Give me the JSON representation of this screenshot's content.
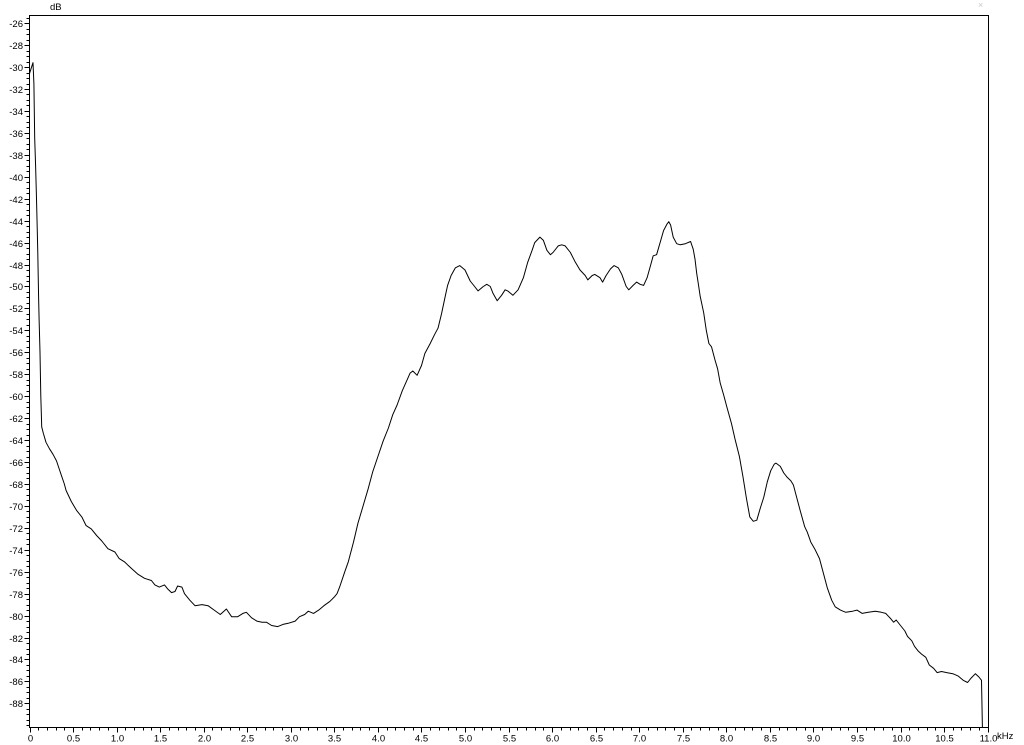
{
  "window": {
    "corner_mark": "×"
  },
  "axes": {
    "y_unit_label": "dB",
    "x_unit_label": "kHz",
    "y_tick_labels": [
      "-26",
      "-28",
      "-30",
      "-32",
      "-34",
      "-36",
      "-38",
      "-40",
      "-42",
      "-44",
      "-46",
      "-48",
      "-50",
      "-52",
      "-54",
      "-56",
      "-58",
      "-60",
      "-62",
      "-64",
      "-66",
      "-68",
      "-70",
      "-72",
      "-74",
      "-76",
      "-78",
      "-80",
      "-82",
      "-84",
      "-86",
      "-88"
    ],
    "x_tick_labels": [
      "0",
      "0.5",
      "1.0",
      "1.5",
      "2.0",
      "2.5",
      "3.0",
      "3.5",
      "4.0",
      "4.5",
      "5.0",
      "5.5",
      "6.0",
      "6.5",
      "7.0",
      "7.5",
      "8.0",
      "8.5",
      "9.0",
      "9.5",
      "10.0",
      "10.5",
      "11.0"
    ]
  },
  "chart_data": {
    "type": "line",
    "title": "",
    "xlabel": "kHz",
    "ylabel": "dB",
    "xlim": [
      0,
      11.01
    ],
    "ylim": [
      -90.2,
      -25.3
    ],
    "x_major_tick_step": 0.5,
    "x_minor_tick_step": 0.1,
    "y_major_tick_step": 2,
    "y_minor_tick_step": 0.5,
    "grid": false,
    "legend": null,
    "line_color": "#000000",
    "background_color": "#ffffff",
    "frame_color": "#000000",
    "series": [
      {
        "name": "spectrum-trace",
        "points": [
          [
            0.0,
            -30.6
          ],
          [
            0.02,
            -30.1
          ],
          [
            0.04,
            -29.6
          ],
          [
            0.05,
            -31.5
          ],
          [
            0.055,
            -34.0
          ],
          [
            0.06,
            -36.5
          ],
          [
            0.07,
            -39.0
          ],
          [
            0.08,
            -42.0
          ],
          [
            0.09,
            -45.0
          ],
          [
            0.095,
            -47.0
          ],
          [
            0.1,
            -49.0
          ],
          [
            0.105,
            -51.0
          ],
          [
            0.11,
            -53.0
          ],
          [
            0.12,
            -56.0
          ],
          [
            0.125,
            -58.0
          ],
          [
            0.13,
            -60.0
          ],
          [
            0.135,
            -61.5
          ],
          [
            0.14,
            -62.8
          ],
          [
            0.16,
            -63.4
          ],
          [
            0.19,
            -64.2
          ],
          [
            0.23,
            -64.8
          ],
          [
            0.27,
            -65.3
          ],
          [
            0.31,
            -65.9
          ],
          [
            0.34,
            -66.6
          ],
          [
            0.37,
            -67.3
          ],
          [
            0.4,
            -68.0
          ],
          [
            0.42,
            -68.6
          ],
          [
            0.45,
            -69.1
          ],
          [
            0.48,
            -69.6
          ],
          [
            0.51,
            -70.0
          ],
          [
            0.54,
            -70.4
          ],
          [
            0.57,
            -70.7
          ],
          [
            0.6,
            -71.0
          ],
          [
            0.65,
            -71.8
          ],
          [
            0.71,
            -72.1
          ],
          [
            0.77,
            -72.7
          ],
          [
            0.83,
            -73.2
          ],
          [
            0.9,
            -73.9
          ],
          [
            0.98,
            -74.2
          ],
          [
            1.03,
            -74.8
          ],
          [
            1.09,
            -75.1
          ],
          [
            1.17,
            -75.7
          ],
          [
            1.24,
            -76.2
          ],
          [
            1.32,
            -76.6
          ],
          [
            1.4,
            -76.8
          ],
          [
            1.44,
            -77.2
          ],
          [
            1.49,
            -77.4
          ],
          [
            1.55,
            -77.2
          ],
          [
            1.59,
            -77.6
          ],
          [
            1.63,
            -77.9
          ],
          [
            1.67,
            -77.8
          ],
          [
            1.7,
            -77.3
          ],
          [
            1.75,
            -77.4
          ],
          [
            1.78,
            -78.0
          ],
          [
            1.84,
            -78.6
          ],
          [
            1.9,
            -79.1
          ],
          [
            1.98,
            -79.0
          ],
          [
            2.05,
            -79.1
          ],
          [
            2.12,
            -79.5
          ],
          [
            2.19,
            -79.9
          ],
          [
            2.26,
            -79.4
          ],
          [
            2.32,
            -80.1
          ],
          [
            2.39,
            -80.1
          ],
          [
            2.45,
            -79.8
          ],
          [
            2.49,
            -79.7
          ],
          [
            2.55,
            -80.2
          ],
          [
            2.61,
            -80.5
          ],
          [
            2.67,
            -80.6
          ],
          [
            2.72,
            -80.6
          ],
          [
            2.78,
            -80.9
          ],
          [
            2.85,
            -81.0
          ],
          [
            2.91,
            -80.8
          ],
          [
            2.97,
            -80.7
          ],
          [
            3.05,
            -80.5
          ],
          [
            3.1,
            -80.1
          ],
          [
            3.16,
            -79.9
          ],
          [
            3.2,
            -79.6
          ],
          [
            3.26,
            -79.8
          ],
          [
            3.32,
            -79.5
          ],
          [
            3.38,
            -79.1
          ],
          [
            3.45,
            -78.7
          ],
          [
            3.5,
            -78.3
          ],
          [
            3.53,
            -78.0
          ],
          [
            3.56,
            -77.4
          ],
          [
            3.62,
            -76.0
          ],
          [
            3.66,
            -75.1
          ],
          [
            3.72,
            -73.3
          ],
          [
            3.77,
            -71.6
          ],
          [
            3.83,
            -70.0
          ],
          [
            3.89,
            -68.4
          ],
          [
            3.94,
            -66.9
          ],
          [
            4.0,
            -65.5
          ],
          [
            4.06,
            -64.1
          ],
          [
            4.12,
            -62.9
          ],
          [
            4.17,
            -61.7
          ],
          [
            4.22,
            -60.8
          ],
          [
            4.28,
            -59.5
          ],
          [
            4.33,
            -58.6
          ],
          [
            4.37,
            -57.9
          ],
          [
            4.4,
            -57.7
          ],
          [
            4.45,
            -58.1
          ],
          [
            4.5,
            -57.2
          ],
          [
            4.54,
            -56.1
          ],
          [
            4.6,
            -55.2
          ],
          [
            4.65,
            -54.4
          ],
          [
            4.69,
            -53.8
          ],
          [
            4.73,
            -52.5
          ],
          [
            4.77,
            -51.0
          ],
          [
            4.8,
            -49.9
          ],
          [
            4.84,
            -49.0
          ],
          [
            4.89,
            -48.3
          ],
          [
            4.94,
            -48.1
          ],
          [
            5.0,
            -48.5
          ],
          [
            5.06,
            -49.5
          ],
          [
            5.11,
            -50.0
          ],
          [
            5.15,
            -50.4
          ],
          [
            5.21,
            -50.0
          ],
          [
            5.25,
            -49.8
          ],
          [
            5.29,
            -50.0
          ],
          [
            5.32,
            -50.6
          ],
          [
            5.37,
            -51.3
          ],
          [
            5.42,
            -50.8
          ],
          [
            5.46,
            -50.3
          ],
          [
            5.49,
            -50.4
          ],
          [
            5.55,
            -50.8
          ],
          [
            5.61,
            -50.3
          ],
          [
            5.67,
            -49.2
          ],
          [
            5.72,
            -47.8
          ],
          [
            5.77,
            -46.7
          ],
          [
            5.8,
            -46.0
          ],
          [
            5.86,
            -45.5
          ],
          [
            5.9,
            -45.8
          ],
          [
            5.94,
            -46.7
          ],
          [
            5.98,
            -47.1
          ],
          [
            6.01,
            -46.9
          ],
          [
            6.07,
            -46.3
          ],
          [
            6.11,
            -46.2
          ],
          [
            6.15,
            -46.3
          ],
          [
            6.21,
            -46.9
          ],
          [
            6.26,
            -47.7
          ],
          [
            6.32,
            -48.5
          ],
          [
            6.38,
            -49.0
          ],
          [
            6.41,
            -49.4
          ],
          [
            6.46,
            -49.0
          ],
          [
            6.49,
            -48.9
          ],
          [
            6.55,
            -49.2
          ],
          [
            6.58,
            -49.6
          ],
          [
            6.62,
            -49.0
          ],
          [
            6.67,
            -48.4
          ],
          [
            6.71,
            -48.1
          ],
          [
            6.76,
            -48.3
          ],
          [
            6.8,
            -48.9
          ],
          [
            6.85,
            -50.0
          ],
          [
            6.88,
            -50.3
          ],
          [
            6.93,
            -49.9
          ],
          [
            6.97,
            -49.6
          ],
          [
            7.01,
            -49.8
          ],
          [
            7.05,
            -49.9
          ],
          [
            7.09,
            -49.2
          ],
          [
            7.13,
            -48.1
          ],
          [
            7.16,
            -47.2
          ],
          [
            7.2,
            -47.1
          ],
          [
            7.24,
            -46.0
          ],
          [
            7.28,
            -44.9
          ],
          [
            7.32,
            -44.3
          ],
          [
            7.34,
            -44.1
          ],
          [
            7.36,
            -44.4
          ],
          [
            7.39,
            -45.5
          ],
          [
            7.43,
            -46.1
          ],
          [
            7.47,
            -46.2
          ],
          [
            7.53,
            -46.1
          ],
          [
            7.59,
            -45.9
          ],
          [
            7.62,
            -46.6
          ],
          [
            7.64,
            -47.5
          ],
          [
            7.66,
            -48.8
          ],
          [
            7.68,
            -49.8
          ],
          [
            7.7,
            -50.9
          ],
          [
            7.74,
            -52.4
          ],
          [
            7.77,
            -54.0
          ],
          [
            7.8,
            -55.2
          ],
          [
            7.83,
            -55.5
          ],
          [
            7.87,
            -56.7
          ],
          [
            7.9,
            -57.5
          ],
          [
            7.93,
            -58.8
          ],
          [
            7.97,
            -59.9
          ],
          [
            8.01,
            -61.1
          ],
          [
            8.06,
            -62.5
          ],
          [
            8.1,
            -63.9
          ],
          [
            8.15,
            -65.5
          ],
          [
            8.19,
            -67.3
          ],
          [
            8.23,
            -69.3
          ],
          [
            8.27,
            -71.0
          ],
          [
            8.31,
            -71.4
          ],
          [
            8.35,
            -71.3
          ],
          [
            8.39,
            -70.2
          ],
          [
            8.43,
            -69.2
          ],
          [
            8.47,
            -67.8
          ],
          [
            8.51,
            -66.8
          ],
          [
            8.55,
            -66.2
          ],
          [
            8.57,
            -66.1
          ],
          [
            8.62,
            -66.4
          ],
          [
            8.66,
            -67.0
          ],
          [
            8.7,
            -67.4
          ],
          [
            8.74,
            -67.7
          ],
          [
            8.77,
            -68.1
          ],
          [
            8.81,
            -69.3
          ],
          [
            8.85,
            -70.5
          ],
          [
            8.9,
            -71.9
          ],
          [
            8.93,
            -72.4
          ],
          [
            8.97,
            -73.3
          ],
          [
            9.02,
            -74.0
          ],
          [
            9.07,
            -74.8
          ],
          [
            9.11,
            -76.0
          ],
          [
            9.16,
            -77.5
          ],
          [
            9.21,
            -78.6
          ],
          [
            9.25,
            -79.2
          ],
          [
            9.31,
            -79.5
          ],
          [
            9.37,
            -79.7
          ],
          [
            9.45,
            -79.6
          ],
          [
            9.5,
            -79.5
          ],
          [
            9.56,
            -79.8
          ],
          [
            9.63,
            -79.7
          ],
          [
            9.71,
            -79.6
          ],
          [
            9.78,
            -79.7
          ],
          [
            9.83,
            -79.8
          ],
          [
            9.89,
            -80.3
          ],
          [
            9.92,
            -80.6
          ],
          [
            9.95,
            -80.4
          ],
          [
            10.0,
            -80.9
          ],
          [
            10.05,
            -81.4
          ],
          [
            10.08,
            -81.9
          ],
          [
            10.13,
            -82.3
          ],
          [
            10.16,
            -82.8
          ],
          [
            10.2,
            -83.2
          ],
          [
            10.24,
            -83.5
          ],
          [
            10.29,
            -83.8
          ],
          [
            10.33,
            -84.5
          ],
          [
            10.38,
            -84.8
          ],
          [
            10.42,
            -85.2
          ],
          [
            10.47,
            -85.1
          ],
          [
            10.53,
            -85.2
          ],
          [
            10.6,
            -85.3
          ],
          [
            10.66,
            -85.5
          ],
          [
            10.72,
            -85.9
          ],
          [
            10.77,
            -86.1
          ],
          [
            10.81,
            -85.7
          ],
          [
            10.86,
            -85.3
          ],
          [
            10.9,
            -85.6
          ],
          [
            10.93,
            -85.9
          ],
          [
            10.94,
            -90.2
          ]
        ]
      }
    ]
  }
}
